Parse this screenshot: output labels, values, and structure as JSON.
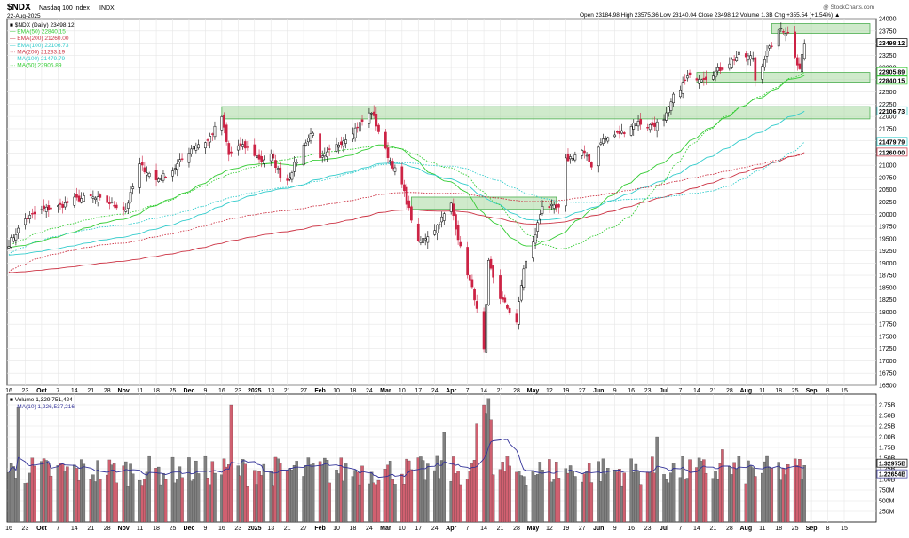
{
  "header": {
    "symbol": "$NDX",
    "name": "Nasdaq 100 Index",
    "exchange": "INDX",
    "date": "22-Aug-2025",
    "copyright": "@ StockCharts.com",
    "ohlc_line": "Open 23184.98  High 23575.36  Low 23140.04  Close 23498.12  Volume 1.3B  Chg +355.54 (+1.54%) ▲"
  },
  "legend": [
    {
      "text": "■ $NDX (Daily) 23498.12",
      "color": "#000000"
    },
    {
      "text": "— EMA(50) 22840.15",
      "color": "#33cc33"
    },
    {
      "text": "— EMA(200) 21260.00",
      "color": "#cc3344"
    },
    {
      "text": "— EMA(100) 22106.73",
      "color": "#33cccc"
    },
    {
      "text": "··· MA(200) 21233.19",
      "color": "#cc3344"
    },
    {
      "text": "··· MA(100) 21479.79",
      "color": "#33cccc"
    },
    {
      "text": "··· MA(50) 22905.89",
      "color": "#33cc33"
    }
  ],
  "price_badges": [
    {
      "text": "23498.12",
      "value": 23498.12,
      "bg": "#ffffff",
      "fg": "#000000",
      "border": "#000000"
    },
    {
      "text": "22905.89",
      "value": 22905.89,
      "bg": "#ffffff",
      "fg": "#33aa33",
      "border": "#33cc33"
    },
    {
      "text": "22840.15",
      "value": 22840.15,
      "bg": "#ffffff",
      "fg": "#33aa33",
      "border": "#33cc33"
    },
    {
      "text": "22106.73",
      "value": 22106.73,
      "bg": "#ffffff",
      "fg": "#2299aa",
      "border": "#33cccc"
    },
    {
      "text": "21479.79",
      "value": 21479.79,
      "bg": "#ffffff",
      "fg": "#2299aa",
      "border": "#33cccc"
    },
    {
      "text": "21260.00",
      "value": 21260.0,
      "bg": "#ffffff",
      "fg": "#cc3344",
      "border": "#cc3344"
    }
  ],
  "volume_legend": [
    {
      "text": "■ Volume 1,329,751,424",
      "color": "#000000"
    },
    {
      "text": "— MA(10) 1,226,537,216",
      "color": "#333399"
    }
  ],
  "volume_badges": [
    {
      "text": "1.32975B",
      "value": 1.32975
    },
    {
      "text": "1.22654B",
      "value": 1.22654
    }
  ],
  "x_tick_labels": [
    "16",
    "23",
    "Oct",
    "7",
    "14",
    "21",
    "28",
    "Nov",
    "11",
    "18",
    "25",
    "Dec",
    "9",
    "16",
    "23",
    "2025",
    "13",
    "21",
    "27",
    "Feb",
    "10",
    "18",
    "24",
    "Mar",
    "10",
    "17",
    "24",
    "Apr",
    "7",
    "14",
    "21",
    "28",
    "May",
    "12",
    "19",
    "27",
    "Jun",
    "9",
    "16",
    "23",
    "Jul",
    "7",
    "14",
    "21",
    "28",
    "Aug",
    "11",
    "18",
    "25",
    "Sep",
    "8",
    "15"
  ],
  "colors": {
    "up": "#000000",
    "down": "#cc2244",
    "vol_up": "#808080",
    "vol_down": "#d06070",
    "zone_fill": "#a8d8a0",
    "zone_stroke": "#4caf50",
    "grid": "#e6e6e6",
    "vol_ma": "#333399"
  },
  "chart_data": [
    {
      "type": "candlestick",
      "title": "$NDX Nasdaq 100 Index INDX (Daily)",
      "ylim": [
        16500,
        24000
      ],
      "y_ticks": [
        16500,
        16750,
        17000,
        17250,
        17500,
        17750,
        18000,
        18250,
        18500,
        18750,
        19000,
        19250,
        19500,
        19750,
        20000,
        20250,
        20500,
        20750,
        21000,
        21250,
        21500,
        21750,
        22000,
        22250,
        22500,
        22750,
        23000,
        23250,
        23500,
        23750,
        24000
      ],
      "x_range": [
        "2024-09-16",
        "2025-09-19"
      ],
      "grid": true,
      "legend_position": "top-left",
      "anchors": [
        [
          "2024-09-16",
          19400
        ],
        [
          "2024-09-23",
          19900
        ],
        [
          "2024-10-01",
          20100
        ],
        [
          "2024-10-07",
          20150
        ],
        [
          "2024-10-14",
          20300
        ],
        [
          "2024-10-21",
          20350
        ],
        [
          "2024-10-28",
          20250
        ],
        [
          "2024-11-05",
          20100
        ],
        [
          "2024-11-11",
          21000
        ],
        [
          "2024-11-18",
          20700
        ],
        [
          "2024-11-25",
          20900
        ],
        [
          "2024-12-04",
          21400
        ],
        [
          "2024-12-10",
          21500
        ],
        [
          "2024-12-16",
          22000
        ],
        [
          "2024-12-19",
          21200
        ],
        [
          "2024-12-23",
          21400
        ],
        [
          "2024-12-27",
          21350
        ],
        [
          "2025-01-02",
          21100
        ],
        [
          "2025-01-06",
          21200
        ],
        [
          "2025-01-10",
          20800
        ],
        [
          "2025-01-13",
          20700
        ],
        [
          "2025-01-21",
          21500
        ],
        [
          "2025-01-24",
          21700
        ],
        [
          "2025-01-27",
          21100
        ],
        [
          "2025-02-03",
          21400
        ],
        [
          "2025-02-10",
          21700
        ],
        [
          "2025-02-18",
          22100
        ],
        [
          "2025-02-21",
          21700
        ],
        [
          "2025-02-24",
          21300
        ],
        [
          "2025-03-03",
          20600
        ],
        [
          "2025-03-10",
          19400
        ],
        [
          "2025-03-17",
          19700
        ],
        [
          "2025-03-24",
          20200
        ],
        [
          "2025-03-28",
          19300
        ],
        [
          "2025-04-03",
          18300
        ],
        [
          "2025-04-07",
          17200
        ],
        [
          "2025-04-09",
          19000
        ],
        [
          "2025-04-14",
          18300
        ],
        [
          "2025-04-21",
          17800
        ],
        [
          "2025-04-24",
          18900
        ],
        [
          "2025-04-28",
          19400
        ],
        [
          "2025-05-02",
          20200
        ],
        [
          "2025-05-09",
          20100
        ],
        [
          "2025-05-12",
          21100
        ],
        [
          "2025-05-19",
          21300
        ],
        [
          "2025-05-23",
          21000
        ],
        [
          "2025-05-27",
          21500
        ],
        [
          "2025-06-06",
          21700
        ],
        [
          "2025-06-11",
          21900
        ],
        [
          "2025-06-16",
          21800
        ],
        [
          "2025-06-23",
          21900
        ],
        [
          "2025-06-27",
          22400
        ],
        [
          "2025-07-03",
          22800
        ],
        [
          "2025-07-11",
          22800
        ],
        [
          "2025-07-18",
          23000
        ],
        [
          "2025-07-25",
          23250
        ],
        [
          "2025-07-31",
          23200
        ],
        [
          "2025-08-01",
          22750
        ],
        [
          "2025-08-06",
          23300
        ],
        [
          "2025-08-12",
          23800
        ],
        [
          "2025-08-15",
          23700
        ],
        [
          "2025-08-19",
          23100
        ],
        [
          "2025-08-20",
          23000
        ],
        [
          "2025-08-22",
          23498.12
        ]
      ],
      "series": [
        {
          "name": "EMA(50)",
          "last": 22840.15,
          "style": "solid",
          "color": "#33cc33"
        },
        {
          "name": "EMA(200)",
          "last": 21260.0,
          "style": "solid",
          "color": "#cc3344"
        },
        {
          "name": "EMA(100)",
          "last": 22106.73,
          "style": "solid",
          "color": "#33cccc"
        },
        {
          "name": "MA(200)",
          "last": 21233.19,
          "style": "dotted",
          "color": "#cc3344"
        },
        {
          "name": "MA(100)",
          "last": 21479.79,
          "style": "dotted",
          "color": "#33cccc"
        },
        {
          "name": "MA(50)",
          "last": 22905.89,
          "style": "dotted",
          "color": "#33cc33"
        }
      ],
      "zones": [
        {
          "from": "2025-08-08",
          "to": "2025-09-19",
          "low": 23700,
          "high": 23900
        },
        {
          "from": "2025-07-07",
          "to": "2025-09-19",
          "low": 22700,
          "high": 22900
        },
        {
          "from": "2024-12-16",
          "to": "2025-09-19",
          "low": 21950,
          "high": 22200
        },
        {
          "from": "2025-03-07",
          "to": "2025-05-08",
          "low": 20100,
          "high": 20350
        }
      ]
    },
    {
      "type": "bar",
      "title": "Volume",
      "ylim": [
        0,
        3.0
      ],
      "y_ticks": [
        0.25,
        0.5,
        0.75,
        1.0,
        1.25,
        1.5,
        1.75,
        2.0,
        2.25,
        2.5,
        2.75
      ],
      "y_tick_labels": [
        "250M",
        "500M",
        "750M",
        "1.00B",
        "1.25B",
        "1.50B",
        "1.75B",
        "2.00B",
        "2.25B",
        "2.50B",
        "2.75B"
      ],
      "unit": "billions of shares",
      "last": 1.32975,
      "series": [
        {
          "name": "Volume",
          "last": 1.32975
        },
        {
          "name": "MA(10)",
          "last": 1.22654
        }
      ],
      "spikes": [
        [
          "2024-09-20",
          2.7
        ],
        [
          "2024-12-20",
          2.75
        ],
        [
          "2025-01-29",
          1.5
        ],
        [
          "2025-03-21",
          2.1
        ],
        [
          "2025-04-04",
          2.3
        ],
        [
          "2025-04-07",
          2.75
        ],
        [
          "2025-04-08",
          2.55
        ],
        [
          "2025-04-09",
          2.9
        ],
        [
          "2025-04-10",
          2.4
        ],
        [
          "2025-06-20",
          2.0
        ],
        [
          "2025-07-18",
          1.7
        ],
        [
          "2025-08-15",
          1.35
        ],
        [
          "2025-08-22",
          1.33
        ]
      ]
    }
  ]
}
